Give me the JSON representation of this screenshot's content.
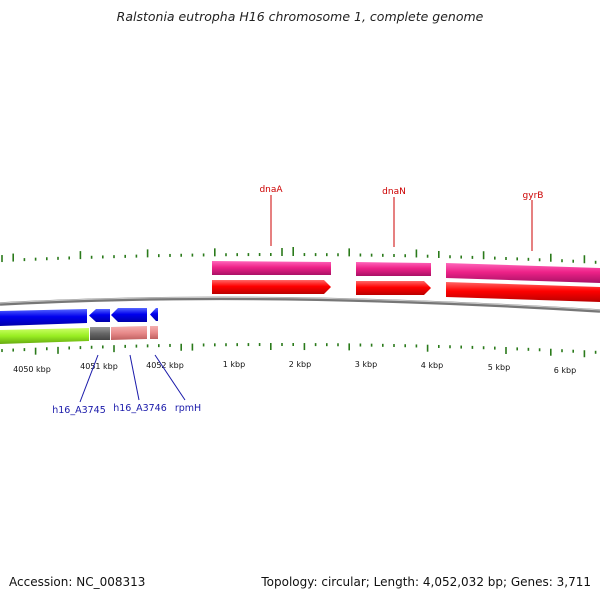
{
  "title": "Ralstonia eutropha H16 chromosome 1, complete genome",
  "footer": {
    "accession": "Accession: NC_008313",
    "summary": "Topology: circular; Length: 4,052,032 bp; Genes: 3,711"
  },
  "colors": {
    "backbone": "#808080",
    "cds_forward": "#ff0000",
    "gene_forward": "#ee2288",
    "cds_reverse": "#0000ee",
    "gene_reverse": "#99ee22",
    "grey_feature": "#666666",
    "pink_feature": "#e88a8a",
    "gc_skew": "#2a7a1a",
    "forward_labels": "#cc0000",
    "reverse_labels": "#1a1aaa"
  },
  "scale_labels": [
    "4050 kbp",
    "4051 kbp",
    "4052 kbp",
    "1 kbp",
    "2 kbp",
    "3 kbp",
    "4 kbp",
    "5 kbp",
    "6 kbp"
  ],
  "forward_gene_labels": [
    "dnaA",
    "dnaN",
    "gyrB"
  ],
  "reverse_gene_labels": [
    "h16_A3745",
    "h16_A3746",
    "rpmH"
  ]
}
